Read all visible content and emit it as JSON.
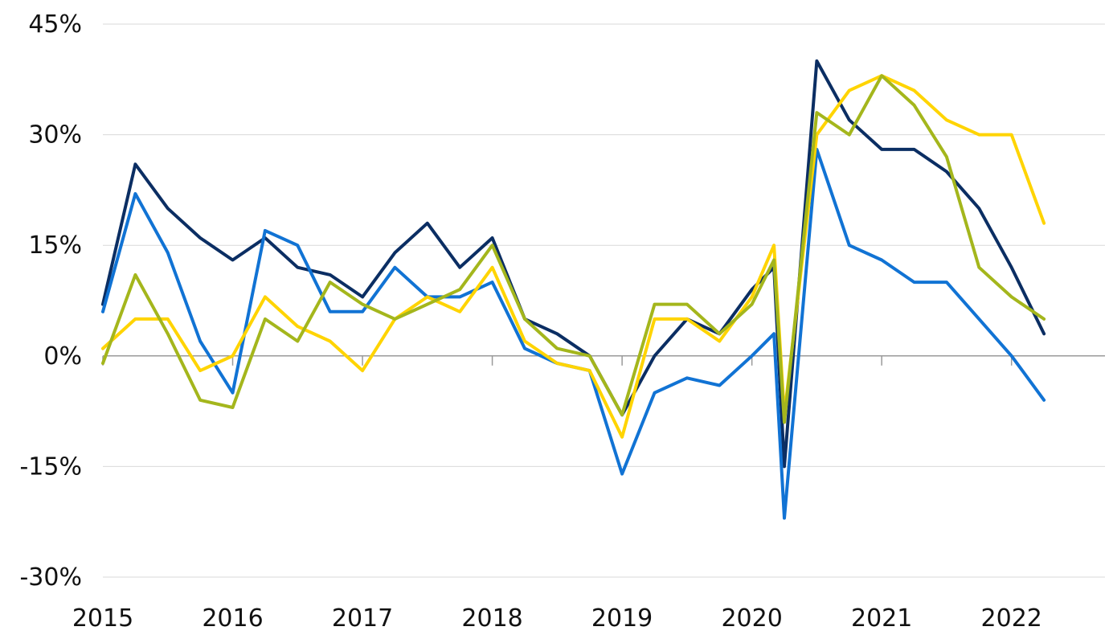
{
  "chart_data": {
    "type": "line",
    "title": "",
    "xlabel": "",
    "ylabel": "",
    "ylim": [
      -30,
      45
    ],
    "xlim": [
      2015,
      2022.72
    ],
    "y_ticks": [
      {
        "value": 45,
        "label": "45%"
      },
      {
        "value": 30,
        "label": "30%"
      },
      {
        "value": 15,
        "label": "15%"
      },
      {
        "value": 0,
        "label": "0%"
      },
      {
        "value": -15,
        "label": "-15%"
      },
      {
        "value": -30,
        "label": "-30%"
      }
    ],
    "x_ticks": [
      {
        "value": 2015,
        "label": "2015"
      },
      {
        "value": 2016,
        "label": "2016"
      },
      {
        "value": 2017,
        "label": "2017"
      },
      {
        "value": 2018,
        "label": "2018"
      },
      {
        "value": 2019,
        "label": "2019"
      },
      {
        "value": 2020,
        "label": "2020"
      },
      {
        "value": 2021,
        "label": "2021"
      },
      {
        "value": 2022,
        "label": "2022"
      }
    ],
    "x": [
      2015.0,
      2015.25,
      2015.5,
      2015.75,
      2016.0,
      2016.25,
      2016.5,
      2016.75,
      2017.0,
      2017.25,
      2017.5,
      2017.75,
      2018.0,
      2018.25,
      2018.5,
      2018.75,
      2019.0,
      2019.25,
      2019.5,
      2019.75,
      2020.0,
      2020.17,
      2020.25,
      2020.5,
      2020.75,
      2021.0,
      2021.25,
      2021.5,
      2021.75,
      2022.0,
      2022.25
    ],
    "series": [
      {
        "name": "Navy series",
        "color": "#0b2e63",
        "values": [
          7,
          26,
          20,
          16,
          13,
          16,
          12,
          11,
          8,
          14,
          18,
          12,
          16,
          5,
          3,
          0,
          -8,
          0,
          5,
          3,
          9,
          12,
          -15,
          40,
          32,
          28,
          28,
          25,
          20,
          12,
          3
        ]
      },
      {
        "name": "Blue series",
        "color": "#1173d4",
        "values": [
          6,
          22,
          14,
          2,
          -5,
          17,
          15,
          6,
          6,
          12,
          8,
          8,
          10,
          1,
          -1,
          -2,
          -16,
          -5,
          -3,
          -4,
          0,
          3,
          -22,
          28,
          15,
          13,
          10,
          10,
          5,
          0,
          -6
        ]
      },
      {
        "name": "Yellow series",
        "color": "#ffd400",
        "values": [
          1,
          5,
          5,
          -2,
          0,
          8,
          4,
          2,
          -2,
          5,
          8,
          6,
          12,
          2,
          -1,
          -2,
          -11,
          5,
          5,
          2,
          8,
          15,
          -8,
          30,
          36,
          38,
          36,
          32,
          30,
          30,
          18
        ]
      },
      {
        "name": "Green series",
        "color": "#a4b61c",
        "values": [
          -1,
          11,
          3,
          -6,
          -7,
          5,
          2,
          10,
          7,
          5,
          7,
          9,
          15,
          5,
          1,
          0,
          -8,
          7,
          7,
          3,
          7,
          13,
          -9,
          33,
          30,
          38,
          34,
          27,
          12,
          8,
          5
        ]
      }
    ]
  }
}
